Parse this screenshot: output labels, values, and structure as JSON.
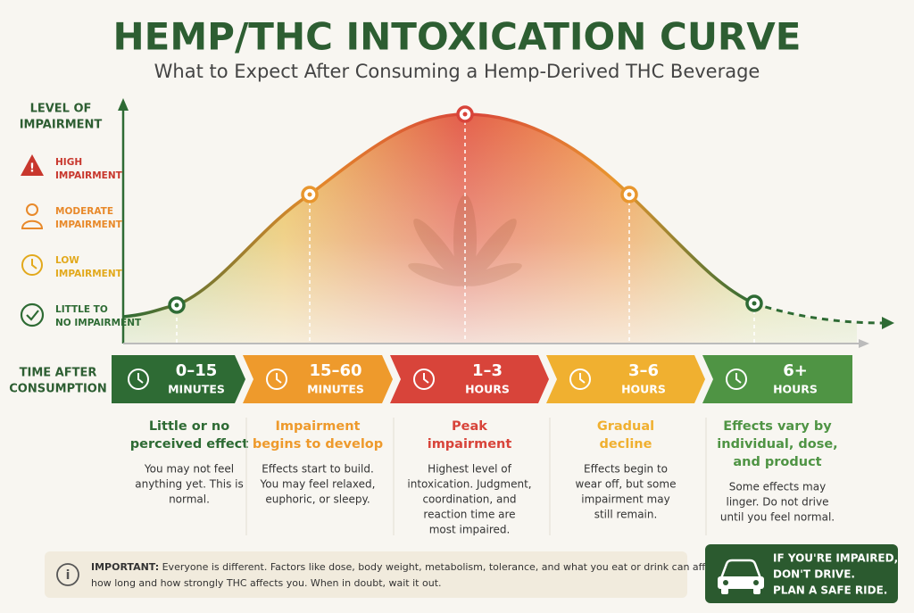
{
  "header": {
    "title": "HEMP/THC INTOXICATION CURVE",
    "subtitle": "What to Expect After Consuming a Hemp-Derived THC Beverage"
  },
  "y_axis": {
    "label_lines": [
      "LEVEL OF",
      "IMPAIRMENT"
    ]
  },
  "legend": [
    {
      "lines": [
        "HIGH",
        "IMPAIRMENT"
      ],
      "color": "#c8372d"
    },
    {
      "lines": [
        "MODERATE",
        "IMPAIRMENT"
      ],
      "color": "#e8892a"
    },
    {
      "lines": [
        "LOW",
        "IMPAIRMENT"
      ],
      "color": "#e2a91c"
    },
    {
      "lines": [
        "LITTLE TO",
        "NO IMPAIRMENT"
      ],
      "color": "#2e6b34"
    }
  ],
  "x_axis": {
    "label_lines": [
      "TIME AFTER",
      "CONSUMPTION"
    ]
  },
  "stages": [
    {
      "time": [
        "0–15",
        "MINUTES"
      ],
      "color": "#2e6b34",
      "heading": [
        "Little or no",
        "perceived effect"
      ],
      "description": [
        "You may not feel",
        "anything yet. This is",
        "normal."
      ]
    },
    {
      "time": [
        "15–60",
        "MINUTES"
      ],
      "color": "#ee9a2c",
      "heading": [
        "Impairment",
        "begins to develop"
      ],
      "description": [
        "Effects start to build.",
        "You may feel relaxed,",
        "euphoric, or sleepy."
      ]
    },
    {
      "time": [
        "1–3",
        "HOURS"
      ],
      "color": "#d8443a",
      "heading": [
        "Peak",
        "impairment"
      ],
      "description": [
        "Highest level of",
        "intoxication. Judgment,",
        "coordination, and",
        "reaction time are",
        "most impaired."
      ]
    },
    {
      "time": [
        "3–6",
        "HOURS"
      ],
      "color": "#f0b030",
      "heading": [
        "Gradual",
        "decline"
      ],
      "description": [
        "Effects begin to",
        "wear off, but some",
        "impairment may",
        "still remain."
      ]
    },
    {
      "time": [
        "6+",
        "HOURS"
      ],
      "color": "#4f9444",
      "heading": [
        "Effects vary by",
        "individual, dose,",
        "and product"
      ],
      "description": [
        "Some effects may",
        "linger. Do not drive",
        "until you feel normal."
      ]
    }
  ],
  "notice": {
    "label": "IMPORTANT:",
    "lines": [
      "Everyone is different. Factors like dose, body weight, metabolism, tolerance, and what you eat or drink can affect",
      "how long and how strongly THC affects you. When in doubt, wait it out."
    ]
  },
  "callout": {
    "lines": [
      "IF YOU'RE IMPAIRED,",
      "DON'T DRIVE.",
      "PLAN A SAFE RIDE."
    ]
  }
}
